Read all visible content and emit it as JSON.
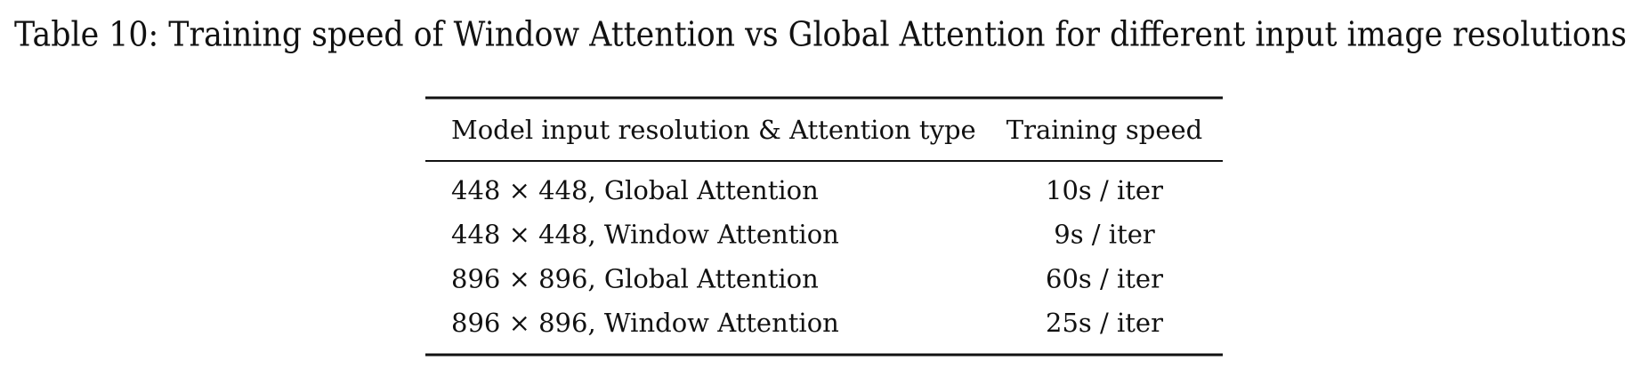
{
  "table": {
    "caption": "Table 10: Training speed of Window Attention vs Global Attention for different input image resolutions",
    "header": [
      "Model input resolution & Attention type",
      "Training speed"
    ],
    "rows": [
      [
        "448 × 448, Global Attention",
        "10s / iter"
      ],
      [
        "448 × 448, Window Attention",
        "9s / iter"
      ],
      [
        "896 × 896, Global Attention",
        "60s / iter"
      ],
      [
        "896 × 896, Window Attention",
        "25s / iter"
      ]
    ]
  }
}
